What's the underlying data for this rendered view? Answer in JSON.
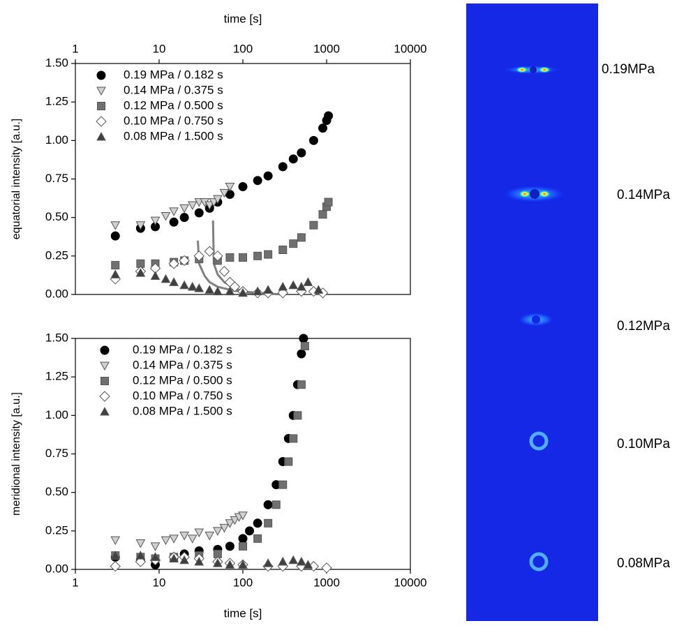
{
  "chart_data": [
    {
      "type": "scatter",
      "x_label": "time [s]",
      "x_axis_position": "top",
      "y_label": "equatorial intensity [a.u.]",
      "xscale": "log",
      "xlim": [
        1,
        10000
      ],
      "xticks": [
        1,
        10,
        100,
        1000,
        10000
      ],
      "ylim": [
        0,
        1.5
      ],
      "yticks": [
        {
          "value": 0,
          "label": "0.00"
        },
        {
          "value": 0.25,
          "label": "0.25"
        },
        {
          "value": 0.5,
          "label": "0.50"
        },
        {
          "value": 0.75,
          "label": "0.75"
        },
        {
          "value": 1,
          "label": "1.00"
        },
        {
          "value": 1.25,
          "label": "1.25"
        },
        {
          "value": 1.5,
          "label": "1.50"
        }
      ],
      "legend": "upper-left",
      "series": [
        {
          "name": "0.19 MPa / 0.182 s",
          "marker": "circle",
          "color": "#000000",
          "x": [
            3,
            6,
            9,
            15,
            20,
            30,
            40,
            50,
            70,
            100,
            150,
            200,
            300,
            400,
            500,
            700,
            900,
            1000,
            1050
          ],
          "y": [
            0.38,
            0.43,
            0.44,
            0.47,
            0.5,
            0.53,
            0.56,
            0.6,
            0.65,
            0.7,
            0.74,
            0.77,
            0.83,
            0.88,
            0.92,
            1.0,
            1.08,
            1.13,
            1.16
          ]
        },
        {
          "name": "0.14 MPa / 0.375 s",
          "marker": "triangle-down",
          "color": "#d0d0d0",
          "x": [
            3,
            6,
            9,
            12,
            15,
            20,
            25,
            30,
            35,
            40,
            45,
            50,
            60,
            70
          ],
          "y": [
            0.45,
            0.45,
            0.48,
            0.51,
            0.54,
            0.56,
            0.58,
            0.6,
            0.6,
            0.58,
            0.6,
            0.62,
            0.66,
            0.7
          ]
        },
        {
          "name": "0.12 MPa / 0.500 s",
          "marker": "square",
          "color": "#707070",
          "x": [
            3,
            6,
            9,
            15,
            20,
            30,
            50,
            70,
            100,
            150,
            200,
            300,
            400,
            500,
            700,
            900,
            1000,
            1050
          ],
          "y": [
            0.19,
            0.2,
            0.2,
            0.21,
            0.22,
            0.23,
            0.22,
            0.24,
            0.24,
            0.25,
            0.26,
            0.29,
            0.33,
            0.37,
            0.45,
            0.52,
            0.57,
            0.6
          ]
        },
        {
          "name": "0.10 MPa / 0.750 s",
          "marker": "diamond",
          "color": "#ffffff",
          "x": [
            3,
            6,
            9,
            15,
            20,
            30,
            40,
            50,
            60,
            70,
            80,
            100,
            150,
            200,
            300,
            500,
            700,
            900
          ],
          "y": [
            0.1,
            0.15,
            0.17,
            0.2,
            0.22,
            0.25,
            0.28,
            0.25,
            0.15,
            0.08,
            0.05,
            0.02,
            0.01,
            0.01,
            0.01,
            0.02,
            0.02,
            0.01
          ]
        },
        {
          "name": "0.08 MPa / 1.500 s",
          "marker": "triangle-up",
          "color": "#404040",
          "x": [
            3,
            6,
            9,
            12,
            15,
            20,
            25,
            30,
            40,
            50,
            70,
            100,
            150,
            200,
            300,
            400,
            500,
            600,
            800
          ],
          "y": [
            0.13,
            0.14,
            0.12,
            0.1,
            0.08,
            0.06,
            0.05,
            0.04,
            0.03,
            0.02,
            0.02,
            0.01,
            0.02,
            0.03,
            0.05,
            0.06,
            0.05,
            0.08,
            0.03
          ]
        }
      ],
      "curves": [
        {
          "color": "#808080",
          "x": [
            29,
            30,
            35,
            40,
            50,
            70,
            100,
            150,
            200
          ],
          "y": [
            0.35,
            0.2,
            0.12,
            0.08,
            0.05,
            0.03,
            0.015,
            0.005,
            0.0
          ]
        },
        {
          "color": "#808080",
          "x": [
            44,
            45,
            50,
            60,
            80,
            100,
            150,
            200,
            300
          ],
          "y": [
            0.48,
            0.2,
            0.13,
            0.08,
            0.04,
            0.02,
            0.01,
            0.005,
            0.0
          ]
        }
      ]
    },
    {
      "type": "scatter",
      "x_label": "time [s]",
      "x_axis_position": "bottom",
      "y_label": "meridional intensity [a.u.]",
      "xscale": "log",
      "xlim": [
        1,
        10000
      ],
      "xticks": [
        1,
        10,
        100,
        1000,
        10000
      ],
      "ylim": [
        0,
        1.5
      ],
      "yticks": [
        {
          "value": 0,
          "label": "0.00"
        },
        {
          "value": 0.25,
          "label": "0.25"
        },
        {
          "value": 0.5,
          "label": "0.50"
        },
        {
          "value": 0.75,
          "label": "0.75"
        },
        {
          "value": 1,
          "label": "1.00"
        },
        {
          "value": 1.25,
          "label": "1.25"
        },
        {
          "value": 1.5,
          "label": "1.50"
        }
      ],
      "legend": "upper-left",
      "series": [
        {
          "name": "0.19 MPa / 0.182 s",
          "marker": "circle",
          "color": "#000000",
          "x": [
            3,
            6,
            9,
            15,
            20,
            30,
            50,
            70,
            100,
            120,
            150,
            200,
            250,
            300,
            350,
            400,
            450,
            500,
            530
          ],
          "y": [
            0.08,
            0.06,
            0.03,
            0.08,
            0.1,
            0.12,
            0.13,
            0.15,
            0.2,
            0.25,
            0.3,
            0.42,
            0.55,
            0.7,
            0.85,
            1.0,
            1.2,
            1.4,
            1.5
          ]
        },
        {
          "name": "0.14 MPa / 0.375 s",
          "marker": "triangle-down",
          "color": "#d0d0d0",
          "x": [
            3,
            6,
            9,
            12,
            15,
            20,
            25,
            30,
            40,
            50,
            60,
            70,
            80,
            90,
            100
          ],
          "y": [
            0.19,
            0.17,
            0.15,
            0.19,
            0.2,
            0.22,
            0.2,
            0.24,
            0.22,
            0.25,
            0.27,
            0.3,
            0.32,
            0.34,
            0.35
          ]
        },
        {
          "name": "0.12 MPa / 0.500 s",
          "marker": "square",
          "color": "#707070",
          "x": [
            3,
            6,
            9,
            15,
            30,
            50,
            100,
            150,
            200,
            250,
            300,
            350,
            400,
            450,
            500,
            550
          ],
          "y": [
            0.09,
            0.08,
            0.07,
            0.08,
            0.09,
            0.1,
            0.15,
            0.2,
            0.3,
            0.42,
            0.55,
            0.7,
            0.85,
            1.0,
            1.2,
            1.45
          ]
        },
        {
          "name": "0.10 MPa / 0.750 s",
          "marker": "diamond",
          "color": "#ffffff",
          "x": [
            3,
            6,
            9,
            15,
            20,
            30,
            50,
            70,
            100,
            200,
            300,
            500,
            700,
            1000
          ],
          "y": [
            0.02,
            0.05,
            0.06,
            0.08,
            0.08,
            0.07,
            0.05,
            0.04,
            0.03,
            0.02,
            0.02,
            0.02,
            0.02,
            0.01
          ]
        },
        {
          "name": "0.08 MPa / 1.500 s",
          "marker": "triangle-up",
          "color": "#404040",
          "x": [
            3,
            6,
            9,
            15,
            20,
            30,
            50,
            70,
            100,
            200,
            300,
            400,
            500,
            600
          ],
          "y": [
            0.09,
            0.09,
            0.08,
            0.07,
            0.06,
            0.05,
            0.04,
            0.03,
            0.03,
            0.04,
            0.05,
            0.06,
            0.05,
            0.03
          ]
        }
      ]
    }
  ],
  "image_panel": {
    "labels": [
      "0.19MPa",
      "0.14MPa",
      "0.12MPa",
      "0.10MPa",
      "0.08MPa"
    ]
  }
}
